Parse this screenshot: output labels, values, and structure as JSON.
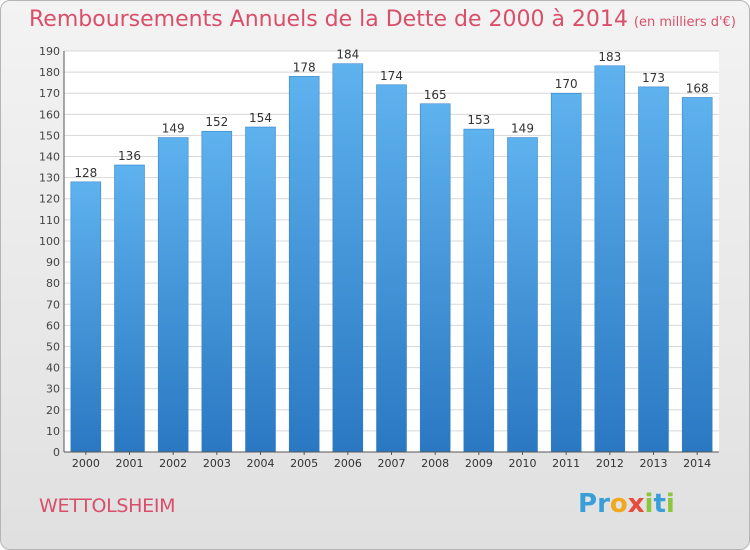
{
  "header": {
    "title": "Remboursements Annuels de la Dette de 2000 à 2014",
    "unit": "(en milliers d'€)"
  },
  "footer": {
    "commune": "WETTOLSHEIM"
  },
  "logo": {
    "letters": [
      {
        "char": "P",
        "color": "#3a9fd9"
      },
      {
        "char": "r",
        "color": "#3a9fd9"
      },
      {
        "char": "o",
        "color": "#f2a81d"
      },
      {
        "char": "x",
        "color": "#e84c3d"
      },
      {
        "char": "i",
        "color": "#8cc63f"
      },
      {
        "char": "t",
        "color": "#3a9fd9"
      },
      {
        "char": "i",
        "color": "#8cc63f"
      }
    ]
  },
  "chart_data": {
    "type": "bar",
    "title": "Remboursements Annuels de la Dette de 2000 à 2014",
    "ylabel": "en milliers d'€",
    "xlabel": "",
    "categories": [
      "2000",
      "2001",
      "2002",
      "2003",
      "2004",
      "2005",
      "2006",
      "2007",
      "2008",
      "2009",
      "2010",
      "2011",
      "2012",
      "2013",
      "2014"
    ],
    "values": [
      128,
      136,
      149,
      152,
      154,
      178,
      184,
      174,
      165,
      153,
      149,
      170,
      183,
      173,
      168
    ],
    "ylim": [
      0,
      190
    ],
    "yticks": [
      0,
      10,
      20,
      30,
      40,
      50,
      60,
      70,
      80,
      90,
      100,
      110,
      120,
      130,
      140,
      150,
      160,
      170,
      180,
      190
    ],
    "grid": true,
    "bar_color": "#4a9fe0"
  }
}
